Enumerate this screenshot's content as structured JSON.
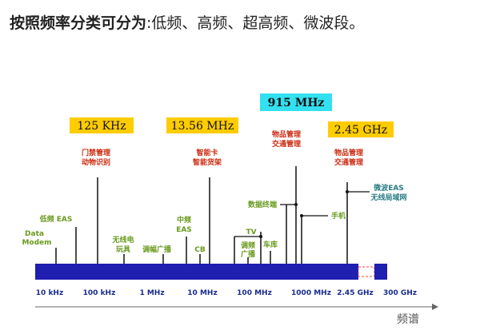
{
  "title": {
    "bold": "按照频率分类可分为",
    "colon": ":",
    "rest": "低频、高频、超高频、微波段。"
  },
  "colors": {
    "band": "#1f1fb0",
    "box_yellow": "#ffcc00",
    "box_cyan": "#33e0f0",
    "red": "#cc2a10",
    "green": "#6a9a1e",
    "teal": "#2a7c86",
    "tick": "#1a2b8c"
  },
  "freq_boxes": {
    "b125": "125 KHz",
    "b1356": "13.56 MHz",
    "b915": "915 MHz",
    "b245": "2.45 GHz"
  },
  "apps": {
    "door_1": "门禁管理",
    "door_2": "动物识别",
    "smart_1": "智能卡",
    "smart_2": "智能货架",
    "goods915_1": "物品管理",
    "goods915_2": "交通管理",
    "goods245_1": "物品管理",
    "goods245_2": "交通管理",
    "lf_eas": "低频 EAS",
    "data_1": "Data",
    "data_2": "Modem",
    "toy_1": "无线电",
    "toy_2": "玩具",
    "am": "调幅广播",
    "mid_1": "中频",
    "mid_2": "EAS",
    "cb": "CB",
    "tv": "TV",
    "fm_1": "调频",
    "fm_2": "广播",
    "car": "车库",
    "data_term": "数据终端",
    "phone": "手机",
    "mw_1": "微波EAS",
    "mw_2": "无线局域网"
  },
  "ticks": [
    "10 kHz",
    "100 kHz",
    "1 MHz",
    "10 MHz",
    "100 MHz",
    "1000 MHz",
    "2.45 GHz",
    "300 GHz"
  ],
  "axis_label": "频谱"
}
